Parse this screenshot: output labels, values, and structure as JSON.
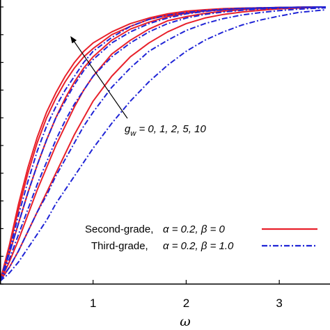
{
  "chart_data": {
    "type": "line",
    "title": "",
    "xlabel": "ω",
    "ylabel": "",
    "xlim": [
      0,
      3.5
    ],
    "ylim": [
      0,
      1
    ],
    "xticks": [
      "1",
      "2",
      "3"
    ],
    "xtick_values": [
      1,
      2,
      3
    ],
    "grid": false,
    "legend_position": "lower-right",
    "annotation": {
      "symbol": "g",
      "subscript": "w",
      "text": " = 0, 1, 2, 5, 10"
    },
    "legend": [
      {
        "label": "Second-grade,",
        "params": "α = 0.2, β = 0",
        "color": "#e8202a",
        "style": "solid"
      },
      {
        "label": "Third-grade,",
        "params": "α = 0.2, β = 1.0",
        "color": "#1f24d6",
        "style": "dashdot"
      }
    ],
    "x": [
      0,
      0.1,
      0.2,
      0.3,
      0.4,
      0.5,
      0.6,
      0.7,
      0.8,
      0.9,
      1.0,
      1.2,
      1.4,
      1.6,
      1.8,
      2.0,
      2.2,
      2.4,
      2.6,
      2.8,
      3.0,
      3.2,
      3.5
    ],
    "series": [
      {
        "group": "second-grade",
        "gw": 0,
        "values": [
          0.01,
          0.14,
          0.29,
          0.42,
          0.53,
          0.62,
          0.69,
          0.75,
          0.8,
          0.84,
          0.87,
          0.91,
          0.94,
          0.96,
          0.975,
          0.985,
          0.99,
          0.994,
          0.996,
          0.997,
          0.998,
          0.999,
          1.0
        ]
      },
      {
        "group": "second-grade",
        "gw": 1,
        "values": [
          0.01,
          0.13,
          0.27,
          0.4,
          0.51,
          0.6,
          0.67,
          0.73,
          0.78,
          0.82,
          0.85,
          0.9,
          0.93,
          0.955,
          0.97,
          0.98,
          0.987,
          0.992,
          0.995,
          0.997,
          0.998,
          0.999,
          1.0
        ]
      },
      {
        "group": "second-grade",
        "gw": 2,
        "values": [
          0.01,
          0.11,
          0.22,
          0.33,
          0.43,
          0.52,
          0.6,
          0.67,
          0.73,
          0.78,
          0.82,
          0.88,
          0.92,
          0.945,
          0.965,
          0.977,
          0.985,
          0.99,
          0.994,
          0.996,
          0.998,
          0.999,
          1.0
        ]
      },
      {
        "group": "second-grade",
        "gw": 5,
        "values": [
          0.01,
          0.08,
          0.16,
          0.25,
          0.34,
          0.42,
          0.5,
          0.57,
          0.64,
          0.7,
          0.75,
          0.83,
          0.88,
          0.92,
          0.95,
          0.965,
          0.977,
          0.985,
          0.99,
          0.994,
          0.996,
          0.998,
          1.0
        ]
      },
      {
        "group": "second-grade",
        "gw": 10,
        "values": [
          0.01,
          0.06,
          0.12,
          0.19,
          0.26,
          0.33,
          0.4,
          0.47,
          0.54,
          0.6,
          0.66,
          0.75,
          0.82,
          0.87,
          0.91,
          0.94,
          0.96,
          0.973,
          0.982,
          0.988,
          0.993,
          0.996,
          1.0
        ]
      },
      {
        "group": "third-grade",
        "gw": 0,
        "values": [
          0.01,
          0.12,
          0.25,
          0.37,
          0.48,
          0.57,
          0.64,
          0.7,
          0.75,
          0.8,
          0.84,
          0.89,
          0.93,
          0.955,
          0.97,
          0.98,
          0.987,
          0.992,
          0.995,
          0.997,
          0.998,
          0.999,
          1.0
        ]
      },
      {
        "group": "third-grade",
        "gw": 1,
        "values": [
          0.01,
          0.11,
          0.22,
          0.33,
          0.43,
          0.52,
          0.6,
          0.66,
          0.72,
          0.77,
          0.81,
          0.87,
          0.91,
          0.94,
          0.96,
          0.975,
          0.984,
          0.99,
          0.994,
          0.996,
          0.998,
          0.999,
          1.0
        ]
      },
      {
        "group": "third-grade",
        "gw": 2,
        "values": [
          0.01,
          0.09,
          0.18,
          0.27,
          0.36,
          0.44,
          0.52,
          0.59,
          0.65,
          0.7,
          0.75,
          0.82,
          0.87,
          0.91,
          0.94,
          0.96,
          0.973,
          0.982,
          0.988,
          0.993,
          0.996,
          0.998,
          1.0
        ]
      },
      {
        "group": "third-grade",
        "gw": 5,
        "values": [
          0.01,
          0.06,
          0.12,
          0.19,
          0.26,
          0.32,
          0.39,
          0.45,
          0.51,
          0.57,
          0.62,
          0.71,
          0.78,
          0.84,
          0.88,
          0.915,
          0.94,
          0.958,
          0.971,
          0.98,
          0.987,
          0.992,
          0.997
        ]
      },
      {
        "group": "third-grade",
        "gw": 10,
        "values": [
          0.01,
          0.04,
          0.08,
          0.13,
          0.18,
          0.23,
          0.29,
          0.34,
          0.39,
          0.44,
          0.49,
          0.58,
          0.66,
          0.73,
          0.79,
          0.84,
          0.88,
          0.91,
          0.935,
          0.953,
          0.967,
          0.98,
          0.99
        ]
      }
    ]
  }
}
